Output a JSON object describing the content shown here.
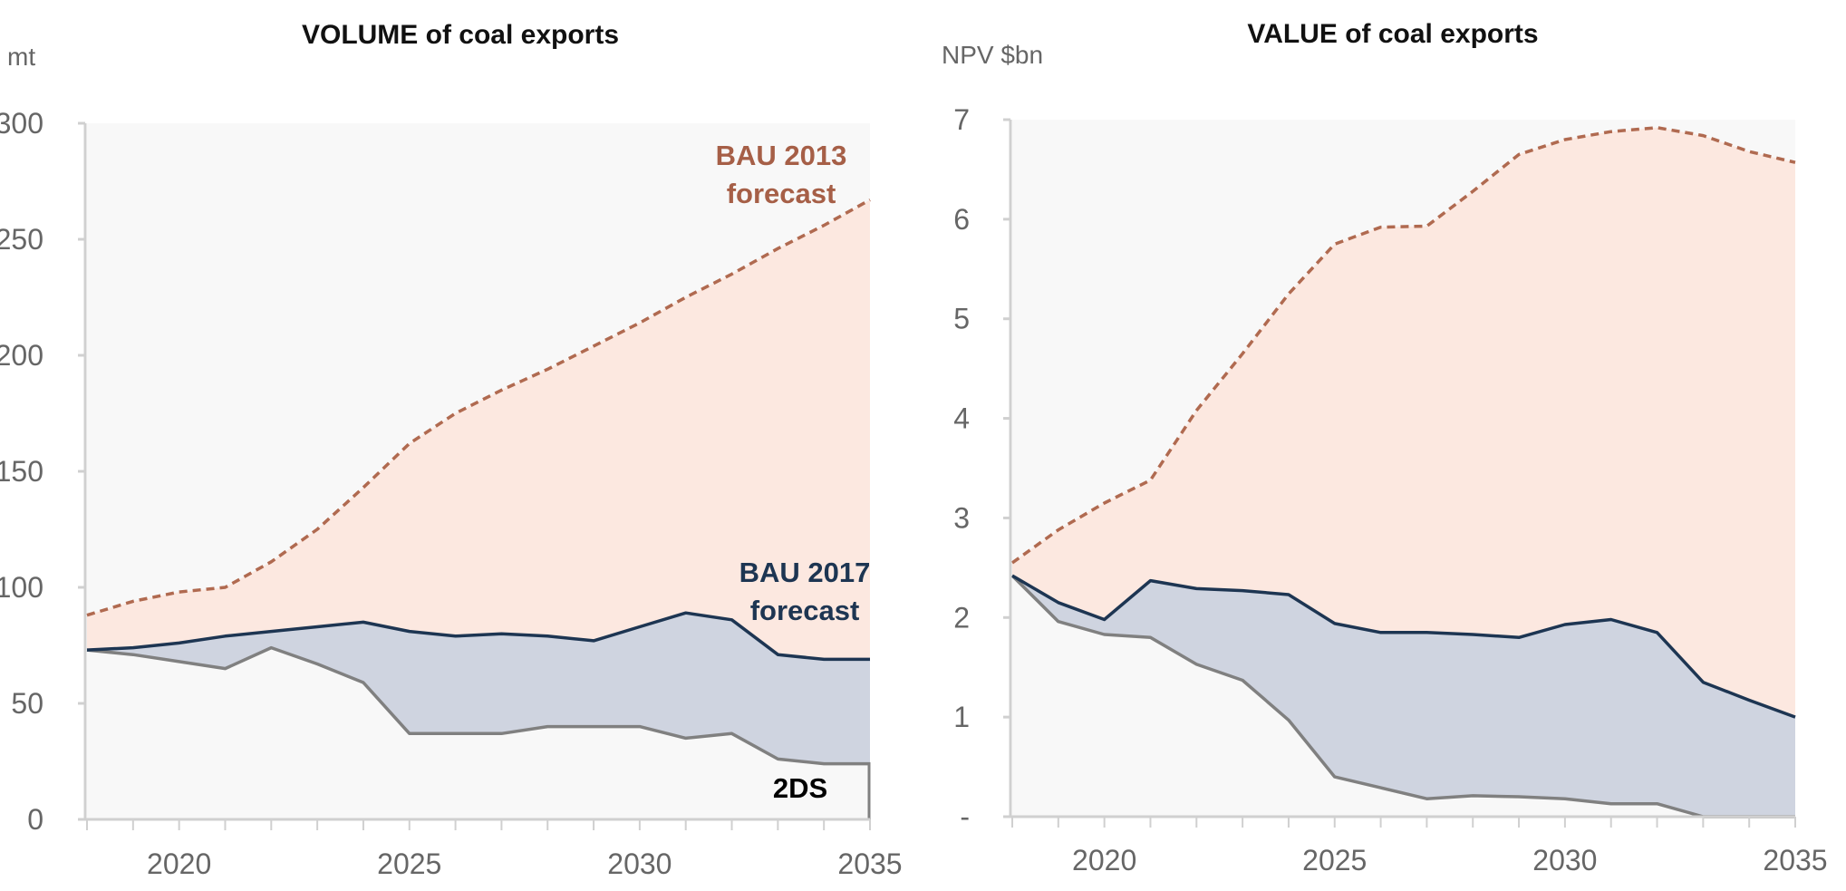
{
  "chart_data": [
    {
      "type": "area",
      "title": "VOLUME of coal exports",
      "ylabel": "mt",
      "ylim": [
        0,
        300
      ],
      "yticks": [
        "0",
        "50",
        "100",
        "150",
        "200",
        "250",
        "300"
      ],
      "ytick_values": [
        0,
        50,
        100,
        150,
        200,
        250,
        300
      ],
      "xlim": [
        2018,
        2035
      ],
      "xticks": [
        "2020",
        "2025",
        "2030",
        "2035"
      ],
      "xtick_values": [
        2020,
        2025,
        2030,
        2035
      ],
      "x": [
        2018,
        2019,
        2020,
        2021,
        2022,
        2023,
        2024,
        2025,
        2026,
        2027,
        2028,
        2029,
        2030,
        2031,
        2032,
        2033,
        2034,
        2035
      ],
      "series": [
        {
          "name": "BAU 2013 forecast",
          "style": "dashed",
          "color": "#b06a50",
          "fill": "#fce8e0",
          "values": [
            88,
            94,
            98,
            100,
            111,
            125,
            143,
            162,
            175,
            185,
            194,
            204,
            214,
            225,
            235,
            246,
            256,
            267
          ]
        },
        {
          "name": "BAU 2017 forecast",
          "style": "solid",
          "color": "#1d3552",
          "fill": "#cfd4e0",
          "values": [
            73,
            74,
            76,
            79,
            81,
            83,
            85,
            81,
            79,
            80,
            79,
            77,
            83,
            89,
            86,
            71,
            69,
            69
          ]
        },
        {
          "name": "2DS",
          "style": "solid",
          "color": "#808080",
          "fill": "#f8f8f8",
          "values": [
            73,
            71,
            68,
            65,
            74,
            67,
            59,
            37,
            37,
            37,
            40,
            40,
            40,
            35,
            37,
            26,
            24,
            24
          ]
        }
      ],
      "labels": {
        "bau2013_line1": "BAU 2013",
        "bau2013_line2": "forecast",
        "bau2017_line1": "BAU 2017",
        "bau2017_line2": "forecast",
        "twods": "2DS"
      }
    },
    {
      "type": "area",
      "title": "VALUE of coal exports",
      "ylabel": "NPV $bn",
      "ylim": [
        0,
        7
      ],
      "yticks": [
        "-",
        "1",
        "2",
        "3",
        "4",
        "5",
        "6",
        "7"
      ],
      "ytick_values": [
        0,
        1,
        2,
        3,
        4,
        5,
        6,
        7
      ],
      "xlim": [
        2018,
        2035
      ],
      "xticks": [
        "2020",
        "2025",
        "2030",
        "2035"
      ],
      "xtick_values": [
        2020,
        2025,
        2030,
        2035
      ],
      "x": [
        2018,
        2019,
        2020,
        2021,
        2022,
        2023,
        2024,
        2025,
        2026,
        2027,
        2028,
        2029,
        2030,
        2031,
        2032,
        2033,
        2034,
        2035
      ],
      "series": [
        {
          "name": "BAU 2013 forecast",
          "style": "dashed",
          "color": "#b06a50",
          "fill": "#fce8e0",
          "values": [
            2.55,
            2.88,
            3.15,
            3.38,
            4.08,
            4.65,
            5.25,
            5.75,
            5.92,
            5.93,
            6.28,
            6.65,
            6.8,
            6.88,
            6.92,
            6.84,
            6.68,
            6.57
          ]
        },
        {
          "name": "BAU 2017 forecast",
          "style": "solid",
          "color": "#1d3552",
          "fill": "#cfd4e0",
          "values": [
            2.42,
            2.15,
            1.98,
            2.37,
            2.29,
            2.27,
            2.23,
            1.94,
            1.85,
            1.85,
            1.83,
            1.8,
            1.93,
            1.98,
            1.85,
            1.35,
            1.17,
            1.0
          ]
        },
        {
          "name": "2DS",
          "style": "solid",
          "color": "#808080",
          "fill": "#f8f8f8",
          "values": [
            2.42,
            1.96,
            1.83,
            1.8,
            1.53,
            1.37,
            0.97,
            0.4,
            0.29,
            0.18,
            0.21,
            0.2,
            0.18,
            0.13,
            0.13,
            0.0,
            0.0,
            0.0
          ]
        }
      ]
    }
  ]
}
